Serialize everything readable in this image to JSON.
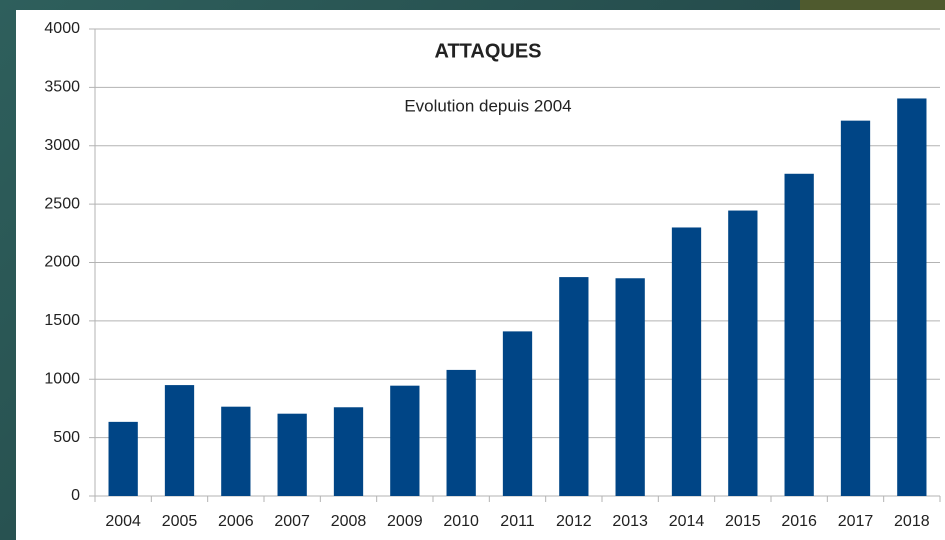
{
  "chart_data": {
    "type": "bar",
    "title": "ATTAQUES",
    "subtitle": "Evolution depuis 2004",
    "categories": [
      "2004",
      "2005",
      "2006",
      "2007",
      "2008",
      "2009",
      "2010",
      "2011",
      "2012",
      "2013",
      "2014",
      "2015",
      "2016",
      "2017",
      "2018"
    ],
    "values": [
      635,
      950,
      765,
      705,
      760,
      945,
      1080,
      1410,
      1875,
      1865,
      2300,
      2445,
      2760,
      3215,
      3405
    ],
    "color": "#004586",
    "ylim": [
      0,
      4000
    ],
    "yticks": [
      0,
      500,
      1000,
      1500,
      2000,
      2500,
      3000,
      3500,
      4000
    ],
    "grid": true
  }
}
